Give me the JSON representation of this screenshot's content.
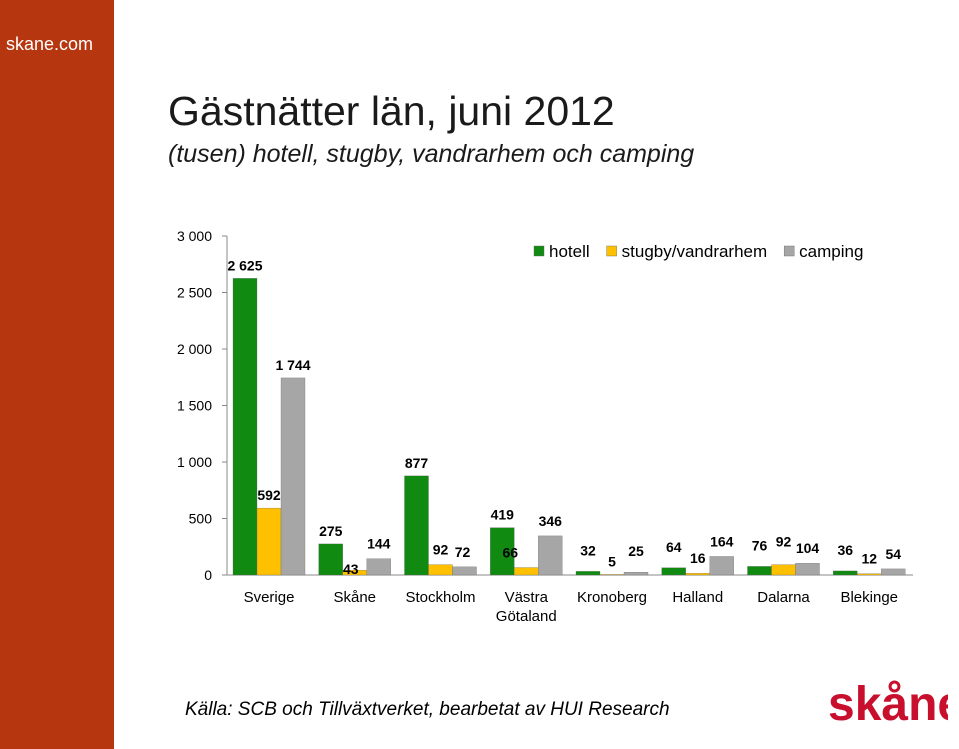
{
  "site": {
    "label": "skane.com"
  },
  "header": {
    "title": "Gästnätter län, juni 2012",
    "subtitle": "(tusen) hotell, stugby, vandrarhem och camping"
  },
  "source": {
    "text": "Källa: SCB och Tillväxtverket, bearbetat av HUI Research"
  },
  "logo": {
    "text": "skåne",
    "icon": "skane-logo",
    "color": "#c8102e"
  },
  "colors": {
    "sidebar": "#b5360f"
  },
  "chart_data": {
    "type": "bar",
    "categories": [
      "Sverige",
      "Skåne",
      "Stockholm",
      "Västra Götaland",
      "Kronoberg",
      "Halland",
      "Dalarna",
      "Blekinge"
    ],
    "category_lines": [
      [
        "Sverige"
      ],
      [
        "Skåne"
      ],
      [
        "Stockholm"
      ],
      [
        "Västra",
        "Götaland"
      ],
      [
        "Kronoberg"
      ],
      [
        "Halland"
      ],
      [
        "Dalarna"
      ],
      [
        "Blekinge"
      ]
    ],
    "series": [
      {
        "name": "hotell",
        "color": "#108a10",
        "values": [
          2625,
          275,
          877,
          419,
          32,
          64,
          76,
          36
        ],
        "labels": [
          "2 625",
          "275",
          "877",
          "419",
          "32",
          "64",
          "76",
          "36"
        ]
      },
      {
        "name": "stugby/vandrarhem",
        "color": "#ffc000",
        "values": [
          592,
          43,
          92,
          66,
          5,
          16,
          92,
          12
        ],
        "labels": [
          "592",
          "43",
          "92",
          "66",
          "5",
          "16",
          "92",
          "12"
        ]
      },
      {
        "name": "camping",
        "color": "#a6a6a6",
        "values": [
          1744,
          144,
          72,
          346,
          25,
          164,
          104,
          54
        ],
        "labels": [
          "1 744",
          "144",
          "72",
          "346",
          "25",
          "164",
          "104",
          "54"
        ]
      }
    ],
    "yticks": [
      "0",
      "500",
      "1 000",
      "1 500",
      "2 000",
      "2 500",
      "3 000"
    ],
    "ytick_values": [
      0,
      500,
      1000,
      1500,
      2000,
      2500,
      3000
    ],
    "ylim": [
      0,
      3000
    ],
    "grid": false,
    "legend_position": "top-right"
  }
}
